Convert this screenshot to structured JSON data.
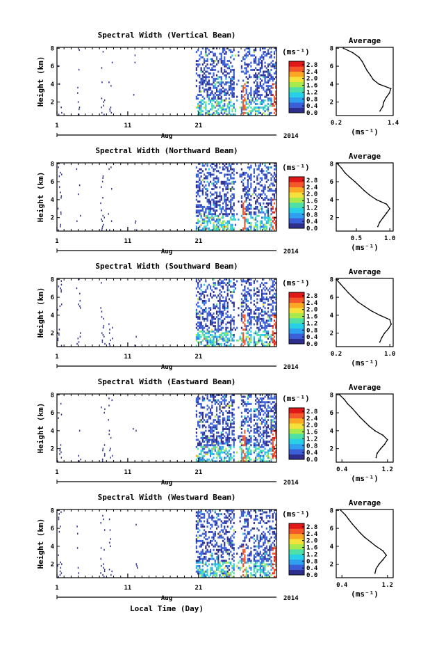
{
  "footer": {
    "xlabel": "Local Time (Day)"
  },
  "chart_data": [
    {
      "type": "heatmap",
      "title": "Spectral Width (Vertical Beam)",
      "ylabel": "Height (km)",
      "yticks": [
        "2",
        "4",
        "6",
        "8"
      ],
      "ylim": [
        0.5,
        8.1
      ],
      "xticks": [
        "1",
        "11",
        "21"
      ],
      "xlim": [
        1,
        32
      ],
      "month_label": "Aug",
      "year_label": "2014",
      "colorbar": {
        "unit": "(ms⁻¹)",
        "ticks": [
          "0.0",
          "0.4",
          "0.8",
          "1.2",
          "1.6",
          "2.0",
          "2.4",
          "2.8"
        ],
        "range": [
          0.0,
          3.0
        ]
      },
      "average": {
        "title": "Average",
        "xticks": [
          "0.2",
          "1.4"
        ],
        "xlim": [
          0.2,
          1.4
        ],
        "xlabel": "(ms⁻¹)",
        "heights": [
          1.0,
          1.5,
          2.0,
          2.5,
          3.0,
          3.5,
          4.0,
          4.5,
          5.0,
          5.5,
          6.0,
          6.5,
          7.0,
          7.5,
          8.0
        ],
        "values": [
          1.12,
          1.18,
          1.2,
          1.25,
          1.32,
          1.35,
          1.1,
          0.98,
          0.92,
          0.85,
          0.8,
          0.75,
          0.68,
          0.55,
          0.35
        ]
      }
    },
    {
      "type": "heatmap",
      "title": "Spectral Width (Northward Beam)",
      "ylabel": "Height (km)",
      "yticks": [
        "2",
        "4",
        "6",
        "8"
      ],
      "ylim": [
        0.5,
        8.1
      ],
      "xticks": [
        "1",
        "11",
        "21"
      ],
      "xlim": [
        1,
        32
      ],
      "month_label": "Aug",
      "year_label": "2014",
      "colorbar": {
        "unit": "(ms⁻¹)",
        "ticks": [
          "0.0",
          "0.4",
          "0.8",
          "1.2",
          "1.6",
          "2.0",
          "2.4",
          "2.8"
        ],
        "range": [
          0.0,
          3.0
        ]
      },
      "average": {
        "title": "Average",
        "xticks": [
          "0.5",
          "1.0"
        ],
        "xlim": [
          0.2,
          1.05
        ],
        "xlabel": "(ms⁻¹)",
        "heights": [
          1.0,
          1.5,
          2.0,
          2.5,
          3.0,
          3.5,
          4.0,
          4.5,
          5.0,
          5.5,
          6.0,
          6.5,
          7.0,
          7.5,
          8.0
        ],
        "values": [
          0.82,
          0.85,
          0.9,
          0.95,
          1.0,
          0.95,
          0.8,
          0.7,
          0.62,
          0.55,
          0.48,
          0.4,
          0.33,
          0.28,
          0.22
        ]
      }
    },
    {
      "type": "heatmap",
      "title": "Spectral Width (Southward Beam)",
      "ylabel": "Height (km)",
      "yticks": [
        "2",
        "4",
        "6",
        "8"
      ],
      "ylim": [
        0.5,
        8.1
      ],
      "xticks": [
        "1",
        "11",
        "21"
      ],
      "xlim": [
        1,
        32
      ],
      "month_label": "Aug",
      "year_label": "2014",
      "colorbar": {
        "unit": "(ms⁻¹)",
        "ticks": [
          "0.0",
          "0.4",
          "0.8",
          "1.2",
          "1.6",
          "2.0",
          "2.4",
          "2.8"
        ],
        "range": [
          0.0,
          3.0
        ]
      },
      "average": {
        "title": "Average",
        "xticks": [
          "0.2",
          "1.0"
        ],
        "xlim": [
          0.2,
          1.05
        ],
        "xlabel": "(ms⁻¹)",
        "heights": [
          1.0,
          1.5,
          2.0,
          2.5,
          3.0,
          3.5,
          4.0,
          4.5,
          5.0,
          5.5,
          6.0,
          6.5,
          7.0,
          7.5,
          8.0
        ],
        "values": [
          0.85,
          0.88,
          0.92,
          0.98,
          1.02,
          1.0,
          0.85,
          0.72,
          0.62,
          0.52,
          0.45,
          0.38,
          0.32,
          0.26,
          0.2
        ]
      }
    },
    {
      "type": "heatmap",
      "title": "Spectral Width (Eastward Beam)",
      "ylabel": "Height (km)",
      "yticks": [
        "2",
        "4",
        "6",
        "8"
      ],
      "ylim": [
        0.5,
        8.1
      ],
      "xticks": [
        "1",
        "11",
        "21"
      ],
      "xlim": [
        1,
        32
      ],
      "month_label": "Aug",
      "year_label": "2014",
      "colorbar": {
        "unit": "(ms⁻¹)",
        "ticks": [
          "0.0",
          "0.4",
          "0.8",
          "1.2",
          "1.6",
          "2.0",
          "2.4",
          "2.8"
        ],
        "range": [
          0.0,
          3.0
        ]
      },
      "average": {
        "title": "Average",
        "xticks": [
          "0.4",
          "1.2"
        ],
        "xlim": [
          0.3,
          1.3
        ],
        "xlabel": "(ms⁻¹)",
        "heights": [
          1.0,
          1.5,
          2.0,
          2.5,
          3.0,
          3.5,
          4.0,
          4.5,
          5.0,
          5.5,
          6.0,
          6.5,
          7.0,
          7.5,
          8.0
        ],
        "values": [
          1.0,
          1.02,
          1.08,
          1.15,
          1.2,
          1.12,
          0.98,
          0.88,
          0.8,
          0.72,
          0.65,
          0.58,
          0.5,
          0.44,
          0.36
        ]
      }
    },
    {
      "type": "heatmap",
      "title": "Spectral Width (Westward Beam)",
      "ylabel": "Height (km)",
      "yticks": [
        "2",
        "4",
        "6",
        "8"
      ],
      "ylim": [
        0.5,
        8.1
      ],
      "xticks": [
        "1",
        "11",
        "21"
      ],
      "xlim": [
        1,
        32
      ],
      "month_label": "Aug",
      "year_label": "2014",
      "colorbar": {
        "unit": "(ms⁻¹)",
        "ticks": [
          "0.0",
          "0.4",
          "0.8",
          "1.2",
          "1.6",
          "2.0",
          "2.4",
          "2.8"
        ],
        "range": [
          0.0,
          3.0
        ]
      },
      "average": {
        "title": "Average",
        "xticks": [
          "0.4",
          "1.2"
        ],
        "xlim": [
          0.3,
          1.3
        ],
        "xlabel": "(ms⁻¹)",
        "heights": [
          1.0,
          1.5,
          2.0,
          2.5,
          3.0,
          3.5,
          4.0,
          4.5,
          5.0,
          5.5,
          6.0,
          6.5,
          7.0,
          7.5,
          8.0
        ],
        "values": [
          0.98,
          1.0,
          1.05,
          1.12,
          1.18,
          1.12,
          1.0,
          0.9,
          0.8,
          0.72,
          0.65,
          0.58,
          0.52,
          0.46,
          0.38
        ]
      }
    }
  ]
}
